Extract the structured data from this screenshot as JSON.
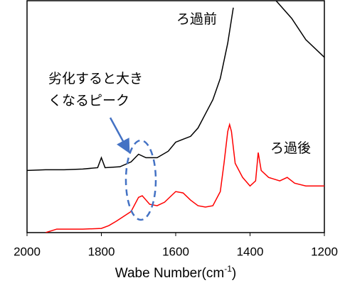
{
  "chart_data": {
    "type": "line",
    "x_label": {
      "text": "Wabe Number(cm",
      "sup": "-1",
      "end": ")"
    },
    "xlim": [
      2000,
      1200
    ],
    "xticks": [
      2000,
      1800,
      1600,
      1400,
      1200
    ],
    "ylim": [
      0,
      100
    ],
    "series": [
      {
        "name": "ろ過前",
        "color": "#000000",
        "x": [
          2000,
          1950,
          1900,
          1850,
          1810,
          1800,
          1790,
          1750,
          1720,
          1700,
          1680,
          1650,
          1620,
          1600,
          1560,
          1540,
          1520,
          1500,
          1480,
          1460,
          1445,
          1400,
          1330,
          1288,
          1250,
          1200
        ],
        "values": [
          26.8,
          27.1,
          27.1,
          27.4,
          28.0,
          32.3,
          28.0,
          28.4,
          30.5,
          33.8,
          32.3,
          32.3,
          35.1,
          39.0,
          41.5,
          45.1,
          51.2,
          57.3,
          66.5,
          81.7,
          97.0,
          null,
          100,
          92.4,
          83.2,
          75.6
        ]
      },
      {
        "name": "ろ過後",
        "color": "#ff0000",
        "x": [
          1950,
          1920,
          1850,
          1800,
          1780,
          1760,
          1740,
          1720,
          1700,
          1690,
          1670,
          1650,
          1630,
          1600,
          1580,
          1560,
          1540,
          1520,
          1500,
          1480,
          1470,
          1460,
          1455,
          1450,
          1440,
          1420,
          1400,
          1385,
          1378,
          1370,
          1350,
          1320,
          1300,
          1280,
          1250,
          1200
        ],
        "values": [
          0,
          1.5,
          1.5,
          1.8,
          3.0,
          4.9,
          7.0,
          9.1,
          15.2,
          15.9,
          12.2,
          11.6,
          13.1,
          17.7,
          17.1,
          14.0,
          11.6,
          11.0,
          11.6,
          17.7,
          29.9,
          43.6,
          46.6,
          43.6,
          29.9,
          23.8,
          20.1,
          22.3,
          34.5,
          26.8,
          23.8,
          22.3,
          23.8,
          21.3,
          20.1,
          20.1
        ]
      }
    ],
    "annotation": [
      "劣化すると大き",
      "くなるピーク"
    ]
  }
}
